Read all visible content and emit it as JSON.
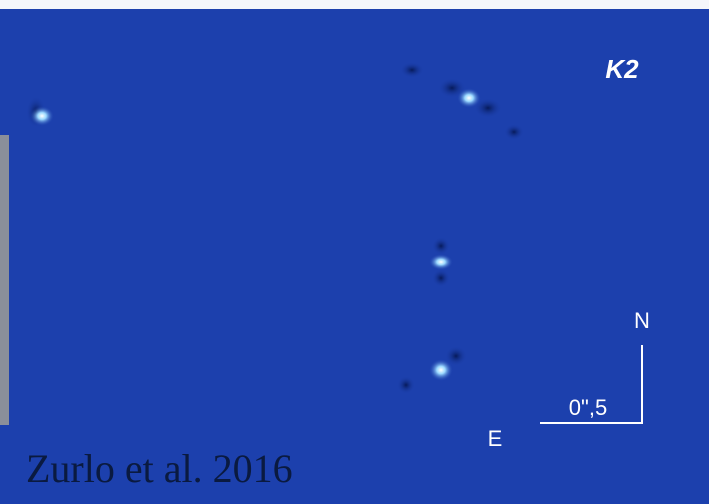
{
  "band_label": "K2",
  "compass": {
    "north": "N",
    "east": "E"
  },
  "scale_bar": "0\",5",
  "credit": "Zurlo et al. 2016"
}
